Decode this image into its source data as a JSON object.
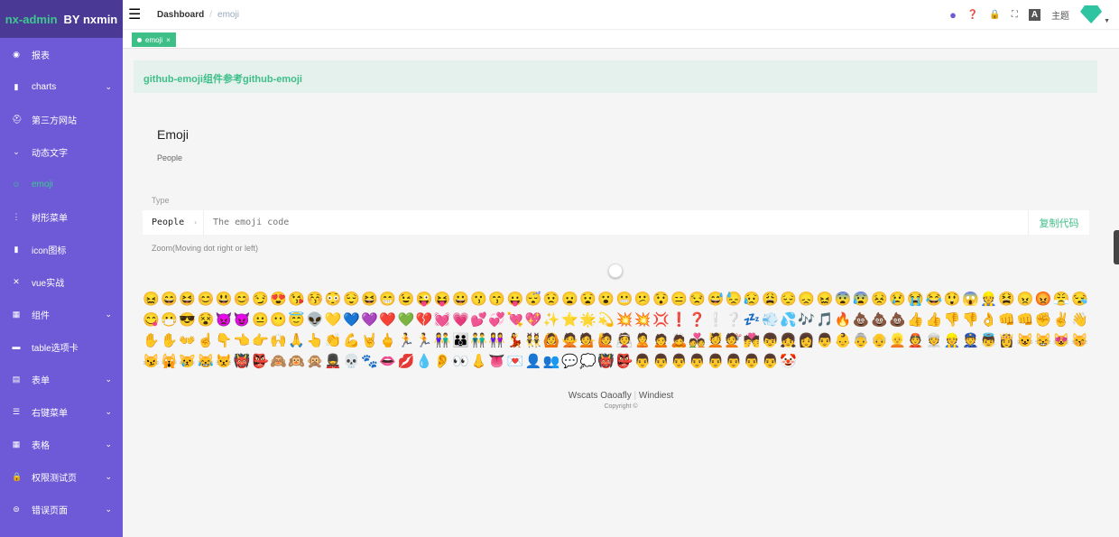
{
  "logo": {
    "name": "nx-admin",
    "by": "BY nxmin"
  },
  "sidebar": {
    "items": [
      {
        "label": "报表",
        "icon": "dashboard-icon",
        "chev": false
      },
      {
        "label": "charts",
        "icon": "bar-chart-icon",
        "chev": true
      },
      {
        "label": "第三方网站",
        "icon": "spider-icon",
        "chev": false
      },
      {
        "label": "动态文字",
        "icon": "chevron-icon",
        "chev": false
      },
      {
        "label": "emoji",
        "icon": "smile-icon",
        "chev": false,
        "active": true
      },
      {
        "label": "树形菜单",
        "icon": "tree-icon",
        "chev": false
      },
      {
        "label": "icon图标",
        "icon": "icon-icon",
        "chev": false
      },
      {
        "label": "vue实战",
        "icon": "x-icon",
        "chev": false
      },
      {
        "label": "组件",
        "icon": "grid-icon",
        "chev": true
      },
      {
        "label": "table选项卡",
        "icon": "table-icon",
        "chev": false
      },
      {
        "label": "表单",
        "icon": "form-icon",
        "chev": true
      },
      {
        "label": "右键菜单",
        "icon": "list-icon",
        "chev": true
      },
      {
        "label": "表格",
        "icon": "grid-icon",
        "chev": true
      },
      {
        "label": "权限测试页",
        "icon": "lock-icon",
        "chev": true
      },
      {
        "label": "错误页面",
        "icon": "error-icon",
        "chev": true
      }
    ]
  },
  "header": {
    "breadcrumb": [
      "Dashboard",
      "emoji"
    ],
    "theme": "主题"
  },
  "tags": [
    {
      "label": "emoji"
    }
  ],
  "banner": "github-emoji组件参考github-emoji",
  "card": {
    "title": "Emoji",
    "subtitle": "People",
    "type_label": "Type",
    "type_value": "People",
    "placeholder": "The emoji code",
    "copy": "复制代码",
    "zoom_label": "Zoom(Moving dot right or left)"
  },
  "emojis": "😖😄😆😊😃😊😏😍😘😚😳😌😆😁😉😜😝😀😗😙😛😴😟😦😧😮😬😕😯😑😒😅😓😥😩😔😞😖😨😰😣😢😭😂😲😱👷😫😠😡😤😪😋😷😎😵👿😈😐😶😇👽💛💙💜❤️💚💔💓💗💕💞💘💖✨⭐🌟💫💥💥💢❗❓❕❔💤💨💦🎶🎵🔥💩💩💩👍👍👎👎👌👊👊✊✌️👋✋✋👐☝️👇👈👉🙌🙏👆👏💪🤘🖕🏃🏃👫👪👬👭💃👯🙆🙅💁🙋👰🙎🙍🙇💑💆💇💏👦👧👩👨👶👵👴👱👲👳👷👮👼👸😺😸😻😽😼🙀😿😹😾👹👺🙈🙉🙊💂💀🐾👄💋💧👂👀👃👅💌👤👥💬💭👹👺👨👨👨👨👨👨👨👨🤡",
  "footer": {
    "links": [
      "Wscats Oaoafly",
      "Windiest"
    ],
    "copyright": "Copyright ©"
  }
}
